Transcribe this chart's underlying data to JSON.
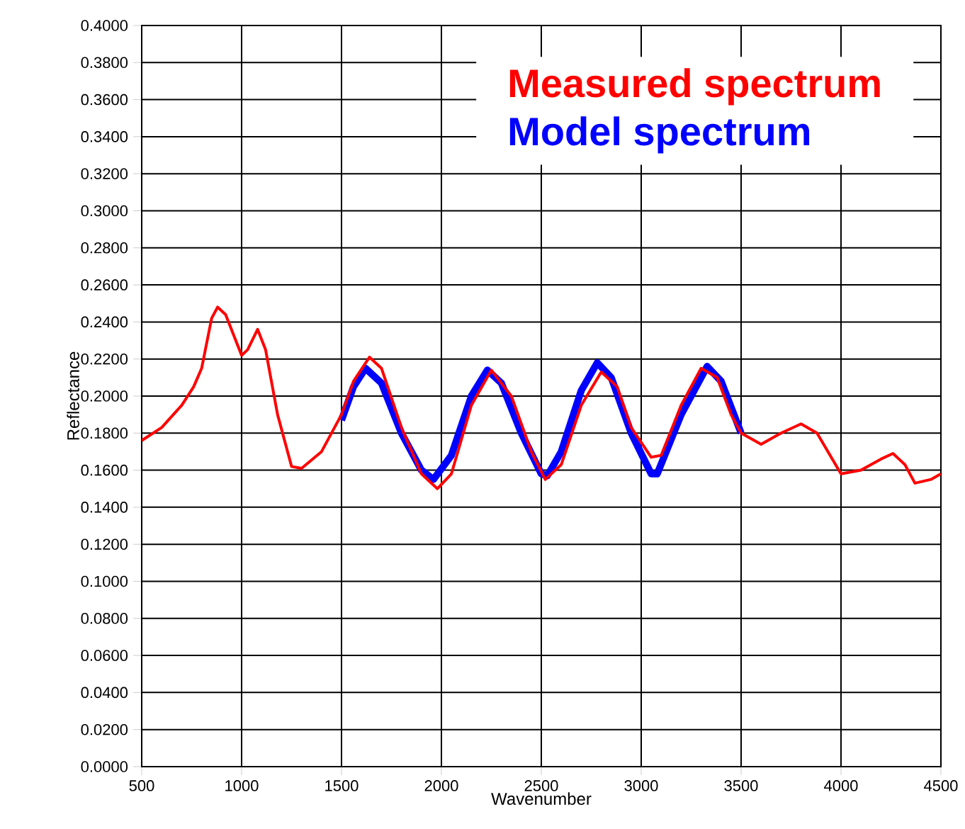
{
  "chart_data": {
    "type": "line",
    "xlabel": "Wavenumber",
    "ylabel": "Reflectance",
    "xlim": [
      500,
      4500
    ],
    "xticks": [
      500,
      1000,
      1500,
      2000,
      2500,
      3000,
      3500,
      4000,
      4500
    ],
    "ylim": [
      0,
      0.4
    ],
    "yticks": [
      {
        "value": 0,
        "label": "0.0000"
      },
      {
        "value": 0.02,
        "label": "0.0200"
      },
      {
        "value": 0.04,
        "label": "0.0400"
      },
      {
        "value": 0.06,
        "label": "0.0600"
      },
      {
        "value": 0.08,
        "label": "0.0800"
      },
      {
        "value": 0.1,
        "label": "0.1000"
      },
      {
        "value": 0.12,
        "label": "0.1200"
      },
      {
        "value": 0.14,
        "label": "0.1400"
      },
      {
        "value": 0.16,
        "label": "0.1600"
      },
      {
        "value": 0.18,
        "label": "0.1800"
      },
      {
        "value": 0.2,
        "label": "0.2000"
      },
      {
        "value": 0.22,
        "label": "0.2200"
      },
      {
        "value": 0.24,
        "label": "0.2400"
      },
      {
        "value": 0.26,
        "label": "0.2600"
      },
      {
        "value": 0.28,
        "label": "0.2800"
      },
      {
        "value": 0.3,
        "label": "0.3000"
      },
      {
        "value": 0.32,
        "label": "0.3200"
      },
      {
        "value": 0.34,
        "label": "0.3400"
      },
      {
        "value": 0.36,
        "label": "0.3600"
      },
      {
        "value": 0.38,
        "label": "0.3800"
      },
      {
        "value": 0.4,
        "label": "0.4000"
      }
    ],
    "grid": true,
    "legend": "top right",
    "marker": "none",
    "line_style": "solid",
    "series": [
      {
        "name": "Measured spectrum",
        "color": "#ff0000",
        "x": [
          500,
          600,
          700,
          760,
          800,
          850,
          880,
          920,
          1000,
          1030,
          1080,
          1120,
          1180,
          1250,
          1300,
          1400,
          1500,
          1560,
          1640,
          1700,
          1800,
          1900,
          1980,
          2050,
          2150,
          2250,
          2350,
          2450,
          2520,
          2600,
          2700,
          2800,
          2880,
          2950,
          3050,
          3100,
          3200,
          3300,
          3380,
          3450,
          3500,
          3600,
          3700,
          3800,
          3880,
          4000,
          4100,
          4200,
          4260,
          4320,
          4370,
          4450,
          4500
        ],
        "values": [
          0.176,
          0.183,
          0.195,
          0.205,
          0.215,
          0.242,
          0.248,
          0.244,
          0.222,
          0.225,
          0.236,
          0.225,
          0.19,
          0.162,
          0.161,
          0.17,
          0.19,
          0.208,
          0.221,
          0.215,
          0.183,
          0.158,
          0.15,
          0.158,
          0.195,
          0.214,
          0.2,
          0.17,
          0.155,
          0.163,
          0.195,
          0.213,
          0.205,
          0.183,
          0.167,
          0.168,
          0.195,
          0.215,
          0.21,
          0.19,
          0.18,
          0.174,
          0.18,
          0.185,
          0.18,
          0.158,
          0.16,
          0.166,
          0.169,
          0.163,
          0.153,
          0.155,
          0.158
        ]
      },
      {
        "name": "Model spectrum",
        "color": "#0000ff",
        "x": [
          1500,
          1560,
          1620,
          1700,
          1800,
          1900,
          1960,
          2050,
          2150,
          2230,
          2300,
          2400,
          2500,
          2530,
          2600,
          2700,
          2780,
          2850,
          2950,
          3050,
          3080,
          3200,
          3330,
          3400,
          3500
        ],
        "values": [
          0.187,
          0.205,
          0.215,
          0.207,
          0.18,
          0.16,
          0.155,
          0.168,
          0.2,
          0.214,
          0.207,
          0.18,
          0.158,
          0.157,
          0.17,
          0.203,
          0.218,
          0.21,
          0.18,
          0.158,
          0.158,
          0.19,
          0.216,
          0.208,
          0.18
        ]
      }
    ]
  }
}
